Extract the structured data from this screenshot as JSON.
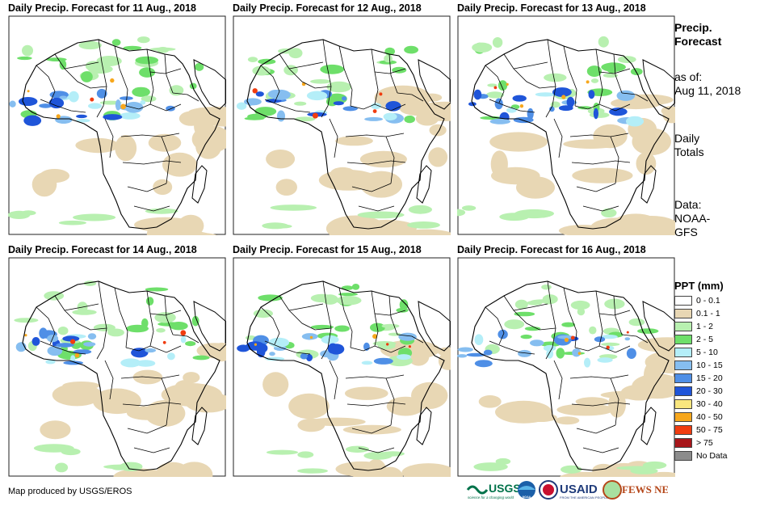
{
  "panels": [
    {
      "title": "Daily Precip. Forecast for 11 Aug., 2018"
    },
    {
      "title": "Daily Precip. Forecast for 12 Aug., 2018"
    },
    {
      "title": "Daily Precip. Forecast for 13 Aug., 2018"
    },
    {
      "title": "Daily Precip. Forecast for 14 Aug., 2018"
    },
    {
      "title": "Daily Precip. Forecast for 15 Aug., 2018"
    },
    {
      "title": "Daily Precip. Forecast for 16 Aug., 2018"
    }
  ],
  "side": {
    "heading_line1": "Precip.",
    "heading_line2": "Forecast",
    "asof_label": "as of:",
    "asof_date": "Aug 11, 2018",
    "totals_line1": "Daily",
    "totals_line2": "Totals",
    "data_line1": "Data:",
    "data_line2": "NOAA-",
    "data_line3": "GFS"
  },
  "legend": {
    "title": "PPT (mm)",
    "items": [
      {
        "label": "0 - 0.1",
        "color": "#ffffff"
      },
      {
        "label": "0.1 - 1",
        "color": "#e8d7b4"
      },
      {
        "label": "1 - 2",
        "color": "#b8f0b0"
      },
      {
        "label": "2 - 5",
        "color": "#6edf6a"
      },
      {
        "label": "5 - 10",
        "color": "#b4eef8"
      },
      {
        "label": "10 - 15",
        "color": "#86bef0"
      },
      {
        "label": "15 - 20",
        "color": "#4f8fe6"
      },
      {
        "label": "20 - 30",
        "color": "#1f55d9"
      },
      {
        "label": "30 - 40",
        "color": "#f9e67e"
      },
      {
        "label": "40 - 50",
        "color": "#f7a71c"
      },
      {
        "label": "50 - 75",
        "color": "#f03c10"
      },
      {
        "label": "> 75",
        "color": "#a8161a"
      },
      {
        "label": "No Data",
        "color": "#8c8c8c"
      }
    ]
  },
  "footer": {
    "credit": "Map produced by USGS/EROS",
    "logo_usgs": "USGS",
    "logo_usgs_tag": "science for a changing world",
    "logo_noaa": "NOAA",
    "logo_usaid": "USAID",
    "logo_usaid_tag": "FROM THE AMERICAN PEOPLE",
    "logo_fews": "FEWS NET"
  }
}
